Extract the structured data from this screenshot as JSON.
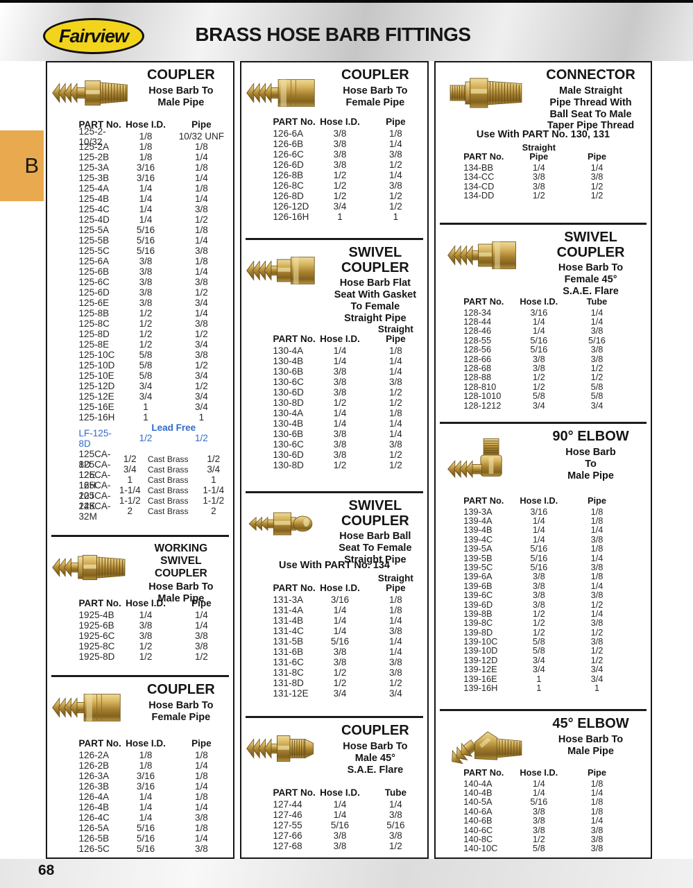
{
  "header": {
    "logo_text": "Fairview",
    "title": "BRASS HOSE BARB FITTINGS"
  },
  "side_tab": {
    "label": "B"
  },
  "footer": {
    "page_number": "68"
  },
  "colors": {
    "logo_yellow": "#F2D41C",
    "tab_orange": "#E9A94F",
    "lead_free_blue": "#2E6BC8",
    "brass": "#C9A44E"
  },
  "sections": [
    {
      "title": "COUPLER",
      "subtitle": "Hose Barb To\nMale  Pipe",
      "headers": [
        "PART No.",
        "Hose I.D.",
        "Pipe"
      ],
      "rows": [
        [
          "125-2-10/32",
          "1/8",
          "10/32 UNF"
        ],
        [
          "125-2A",
          "1/8",
          "1/8"
        ],
        [
          "125-2B",
          "1/8",
          "1/4"
        ],
        [
          "125-3A",
          "3/16",
          "1/8"
        ],
        [
          "125-3B",
          "3/16",
          "1/4"
        ],
        [
          "125-4A",
          "1/4",
          "1/8"
        ],
        [
          "125-4B",
          "1/4",
          "1/4"
        ],
        [
          "125-4C",
          "1/4",
          "3/8"
        ],
        [
          "125-4D",
          "1/4",
          "1/2"
        ],
        [
          "125-5A",
          "5/16",
          "1/8"
        ],
        [
          "125-5B",
          "5/16",
          "1/4"
        ],
        [
          "125-5C",
          "5/16",
          "3/8"
        ],
        [
          "125-6A",
          "3/8",
          "1/8"
        ],
        [
          "125-6B",
          "3/8",
          "1/4"
        ],
        [
          "125-6C",
          "3/8",
          "3/8"
        ],
        [
          "125-6D",
          "3/8",
          "1/2"
        ],
        [
          "125-6E",
          "3/8",
          "3/4"
        ],
        [
          "125-8B",
          "1/2",
          "1/4"
        ],
        [
          "125-8C",
          "1/2",
          "3/8"
        ],
        [
          "125-8D",
          "1/2",
          "1/2"
        ],
        [
          "125-8E",
          "1/2",
          "3/4"
        ],
        [
          "125-10C",
          "5/8",
          "3/8"
        ],
        [
          "125-10D",
          "5/8",
          "1/2"
        ],
        [
          "125-10E",
          "5/8",
          "3/4"
        ],
        [
          "125-12D",
          "3/4",
          "1/2"
        ],
        [
          "125-12E",
          "3/4",
          "3/4"
        ],
        [
          "125-16E",
          "1",
          "3/4"
        ],
        [
          "125-16H",
          "1",
          "1"
        ],
        {
          "label": "Lead Free"
        },
        {
          "cells": [
            "LF-125-8D",
            "1/2",
            "1/2"
          ],
          "style": "lf"
        },
        {
          "gap": true
        },
        [
          "125CA-8D",
          "1/2",
          "Cast Brass",
          "1/2"
        ],
        [
          "125CA-12E",
          "3/4",
          "Cast Brass",
          "3/4"
        ],
        [
          "125CA-16H",
          "1",
          "Cast Brass",
          "1"
        ],
        [
          "125CA-20J",
          "1-1/4",
          "Cast Brass",
          "1-1/4"
        ],
        [
          "125CA-24K",
          "1-1/2",
          "Cast Brass",
          "1-1/2"
        ],
        [
          "125CA-32M",
          "2",
          "Cast Brass",
          "2"
        ]
      ]
    },
    {
      "title": "WORKING SWIVEL\nCOUPLER",
      "subtitle": "Hose Barb To\nMale  Pipe",
      "headers": [
        "PART No.",
        "Hose I.D.",
        "Pipe"
      ],
      "rows": [
        [
          "1925-4B",
          "1/4",
          "1/4"
        ],
        [
          "1925-6B",
          "3/8",
          "1/4"
        ],
        [
          "1925-6C",
          "3/8",
          "3/8"
        ],
        [
          "1925-8C",
          "1/2",
          "3/8"
        ],
        [
          "1925-8D",
          "1/2",
          "1/2"
        ]
      ]
    },
    {
      "title": "COUPLER",
      "subtitle": "Hose Barb To\nFemale  Pipe",
      "headers": [
        "PART No.",
        "Hose I.D.",
        "Pipe"
      ],
      "rows": [
        [
          "126-2A",
          "1/8",
          "1/8"
        ],
        [
          "126-2B",
          "1/8",
          "1/4"
        ],
        [
          "126-3A",
          "3/16",
          "1/8"
        ],
        [
          "126-3B",
          "3/16",
          "1/4"
        ],
        [
          "126-4A",
          "1/4",
          "1/8"
        ],
        [
          "126-4B",
          "1/4",
          "1/4"
        ],
        [
          "126-4C",
          "1/4",
          "3/8"
        ],
        [
          "126-5A",
          "5/16",
          "1/8"
        ],
        [
          "126-5B",
          "5/16",
          "1/4"
        ],
        [
          "126-5C",
          "5/16",
          "3/8"
        ]
      ]
    },
    {
      "title": "COUPLER",
      "subtitle": "Hose Barb To\nFemale  Pipe",
      "headers": [
        "PART No.",
        "Hose I.D.",
        "Pipe"
      ],
      "rows": [
        [
          "126-6A",
          "3/8",
          "1/8"
        ],
        [
          "126-6B",
          "3/8",
          "1/4"
        ],
        [
          "126-6C",
          "3/8",
          "3/8"
        ],
        [
          "126-6D",
          "3/8",
          "1/2"
        ],
        [
          "126-8B",
          "1/2",
          "1/4"
        ],
        [
          "126-8C",
          "1/2",
          "3/8"
        ],
        [
          "126-8D",
          "1/2",
          "1/2"
        ],
        [
          "126-12D",
          "3/4",
          "1/2"
        ],
        [
          "126-16H",
          "1",
          "1"
        ]
      ]
    },
    {
      "title": "SWIVEL\nCOUPLER",
      "subtitle": "Hose Barb Flat\nSeat With Gasket\nTo Female\nStraight Pipe",
      "headers": [
        "PART No.",
        "Hose I.D.",
        "Straight\nPipe"
      ],
      "rows": [
        [
          "130-4A",
          "1/4",
          "1/8"
        ],
        [
          "130-4B",
          "1/4",
          "1/4"
        ],
        [
          "130-6B",
          "3/8",
          "1/4"
        ],
        [
          "130-6C",
          "3/8",
          "3/8"
        ],
        [
          "130-6D",
          "3/8",
          "1/2"
        ],
        [
          "130-8D",
          "1/2",
          "1/2"
        ],
        [
          "130-4A",
          "1/4",
          "1/8"
        ],
        [
          "130-4B",
          "1/4",
          "1/4"
        ],
        [
          "130-6B",
          "3/8",
          "1/4"
        ],
        [
          "130-6C",
          "3/8",
          "3/8"
        ],
        [
          "130-6D",
          "3/8",
          "1/2"
        ],
        [
          "130-8D",
          "1/2",
          "1/2"
        ]
      ]
    },
    {
      "title": "SWIVEL\nCOUPLER",
      "subtitle": "Hose Barb Ball\nSeat To Female\nStraight Pipe",
      "note": "Use With PART No. 134",
      "headers": [
        "PART No.",
        "Hose I.D.",
        "Straight\nPipe"
      ],
      "rows": [
        [
          "131-3A",
          "3/16",
          "1/8"
        ],
        [
          "131-4A",
          "1/4",
          "1/8"
        ],
        [
          "131-4B",
          "1/4",
          "1/4"
        ],
        [
          "131-4C",
          "1/4",
          "3/8"
        ],
        [
          "131-5B",
          "5/16",
          "1/4"
        ],
        [
          "131-6B",
          "3/8",
          "1/4"
        ],
        [
          "131-6C",
          "3/8",
          "3/8"
        ],
        [
          "131-8C",
          "1/2",
          "3/8"
        ],
        [
          "131-8D",
          "1/2",
          "1/2"
        ],
        [
          "131-12E",
          "3/4",
          "3/4"
        ]
      ]
    },
    {
      "title": "COUPLER",
      "subtitle": "Hose Barb To\nMale 45°\nS.A.E. Flare",
      "headers": [
        "PART No.",
        "Hose I.D.",
        "Tube"
      ],
      "rows": [
        [
          "127-44",
          "1/4",
          "1/4"
        ],
        [
          "127-46",
          "1/4",
          "3/8"
        ],
        [
          "127-55",
          "5/16",
          "5/16"
        ],
        [
          "127-66",
          "3/8",
          "3/8"
        ],
        [
          "127-68",
          "3/8",
          "1/2"
        ]
      ]
    },
    {
      "title": "CONNECTOR",
      "subtitle": "Male Straight\nPipe Thread With\nBall Seat To Male\nTaper Pipe Thread",
      "note": "Use With PART No. 130, 131",
      "headers": [
        "PART No.",
        "Straight\nPipe",
        "Pipe"
      ],
      "rows": [
        [
          "134-BB",
          "1/4",
          "1/4"
        ],
        [
          "134-CC",
          "3/8",
          "3/8"
        ],
        [
          "134-CD",
          "3/8",
          "1/2"
        ],
        [
          "134-DD",
          "1/2",
          "1/2"
        ]
      ]
    },
    {
      "title": "SWIVEL\nCOUPLER",
      "subtitle": "Hose Barb To\nFemale 45°\nS.A.E. Flare",
      "headers": [
        "PART No.",
        "Hose I.D.",
        "Tube"
      ],
      "rows": [
        [
          "128-34",
          "3/16",
          "1/4"
        ],
        [
          "128-44",
          "1/4",
          "1/4"
        ],
        [
          "128-46",
          "1/4",
          "3/8"
        ],
        [
          "128-55",
          "5/16",
          "5/16"
        ],
        [
          "128-56",
          "5/16",
          "3/8"
        ],
        [
          "128-66",
          "3/8",
          "3/8"
        ],
        [
          "128-68",
          "3/8",
          "1/2"
        ],
        [
          "128-88",
          "1/2",
          "1/2"
        ],
        [
          "128-810",
          "1/2",
          "5/8"
        ],
        [
          "128-1010",
          "5/8",
          "5/8"
        ],
        [
          "128-1212",
          "3/4",
          "3/4"
        ]
      ]
    },
    {
      "title": "90° ELBOW",
      "subtitle": "Hose Barb\nTo\nMale  Pipe",
      "headers": [
        "PART No.",
        "Hose I.D.",
        "Pipe"
      ],
      "rows": [
        [
          "139-3A",
          "3/16",
          "1/8"
        ],
        [
          "139-4A",
          "1/4",
          "1/8"
        ],
        [
          "139-4B",
          "1/4",
          "1/4"
        ],
        [
          "139-4C",
          "1/4",
          "3/8"
        ],
        [
          "139-5A",
          "5/16",
          "1/8"
        ],
        [
          "139-5B",
          "5/16",
          "1/4"
        ],
        [
          "139-5C",
          "5/16",
          "3/8"
        ],
        [
          "139-6A",
          "3/8",
          "1/8"
        ],
        [
          "139-6B",
          "3/8",
          "1/4"
        ],
        [
          "139-6C",
          "3/8",
          "3/8"
        ],
        [
          "139-6D",
          "3/8",
          "1/2"
        ],
        [
          "139-8B",
          "1/2",
          "1/4"
        ],
        [
          "139-8C",
          "1/2",
          "3/8"
        ],
        [
          "139-8D",
          "1/2",
          "1/2"
        ],
        [
          "139-10C",
          "5/8",
          "3/8"
        ],
        [
          "139-10D",
          "5/8",
          "1/2"
        ],
        [
          "139-12D",
          "3/4",
          "1/2"
        ],
        [
          "139-12E",
          "3/4",
          "3/4"
        ],
        [
          "139-16E",
          "1",
          "3/4"
        ],
        [
          "139-16H",
          "1",
          "1"
        ]
      ]
    },
    {
      "title": "45° ELBOW",
      "subtitle": "Hose Barb To\nMale  Pipe",
      "headers": [
        "PART No.",
        "Hose I.D.",
        "Pipe"
      ],
      "rows": [
        [
          "140-4A",
          "1/4",
          "1/8"
        ],
        [
          "140-4B",
          "1/4",
          "1/4"
        ],
        [
          "140-5A",
          "5/16",
          "1/8"
        ],
        [
          "140-6A",
          "3/8",
          "1/8"
        ],
        [
          "140-6B",
          "3/8",
          "1/4"
        ],
        [
          "140-6C",
          "3/8",
          "3/8"
        ],
        [
          "140-8C",
          "1/2",
          "3/8"
        ],
        [
          "140-10C",
          "5/8",
          "3/8"
        ]
      ]
    }
  ]
}
